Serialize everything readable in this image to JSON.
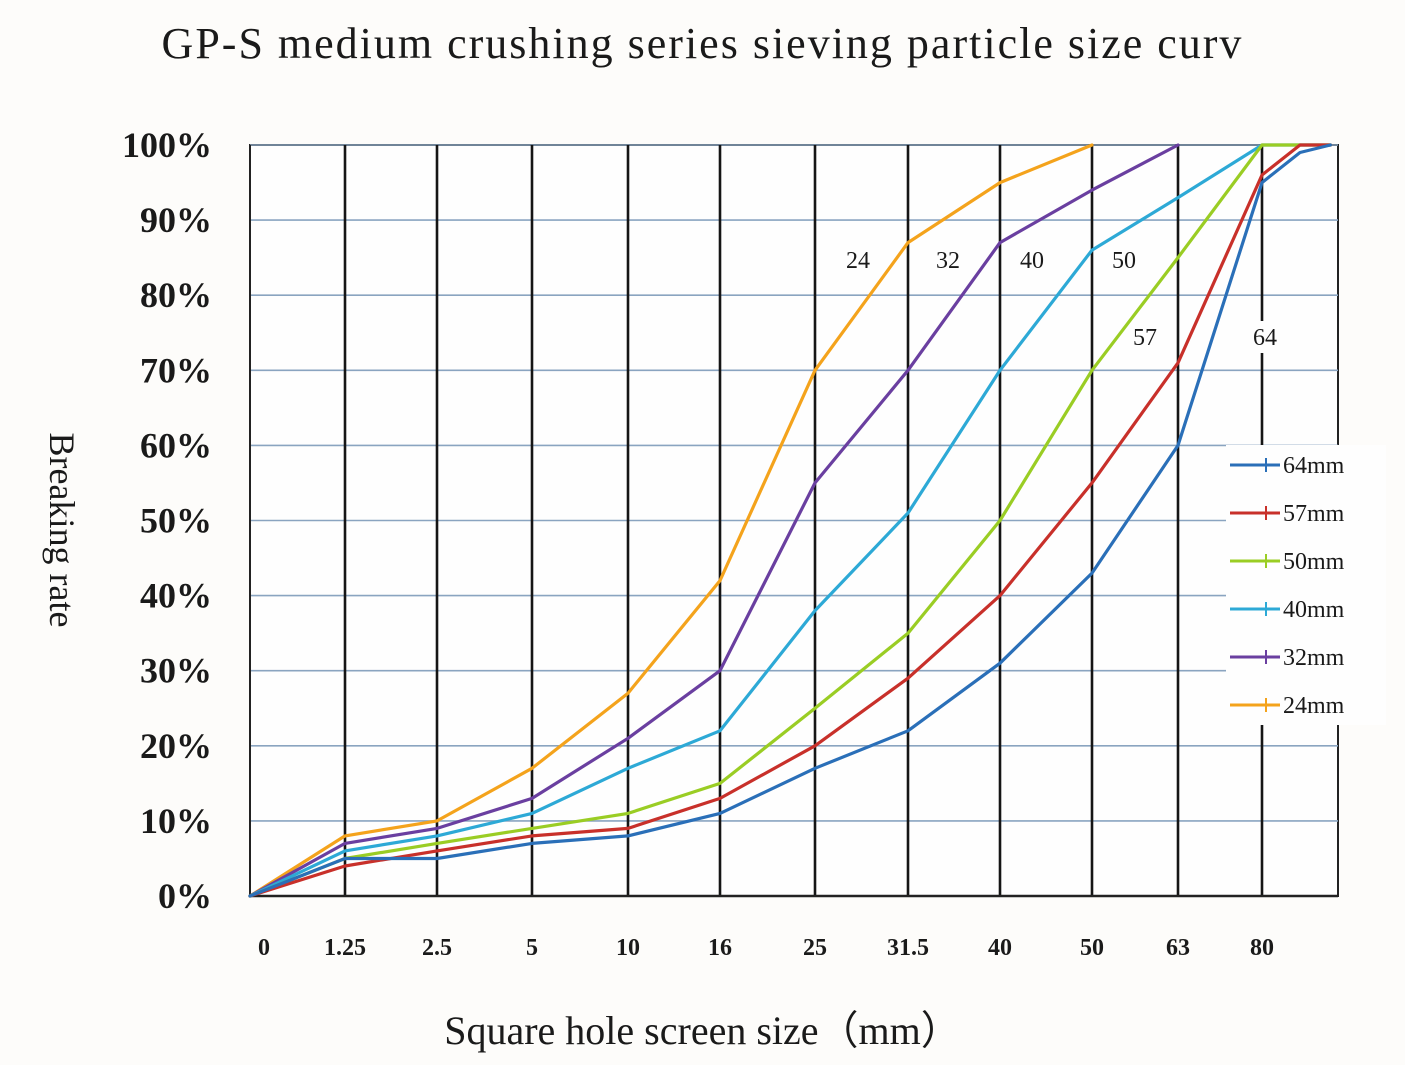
{
  "chart_data": {
    "type": "line",
    "title": "GP-S medium crushing series sieving particle size curv",
    "xlabel": "Square hole screen size（mm）",
    "ylabel": "Breaking rate",
    "x_categories": [
      "0",
      "1.25",
      "2.5",
      "5",
      "10",
      "16",
      "25",
      "31.5",
      "40",
      "50",
      "63",
      "80"
    ],
    "y_ticks": [
      "0%",
      "10%",
      "20%",
      "30%",
      "40%",
      "50%",
      "60%",
      "70%",
      "80%",
      "90%",
      "100%"
    ],
    "ylim": [
      0,
      100
    ],
    "legend_position": "right",
    "series": [
      {
        "name": "64mm",
        "label": "64",
        "color": "#2a6fb8",
        "points": [
          [
            0,
            0
          ],
          [
            1,
            5
          ],
          [
            2,
            5
          ],
          [
            3,
            7
          ],
          [
            4,
            8
          ],
          [
            5,
            11
          ],
          [
            6,
            17
          ],
          [
            7,
            22
          ],
          [
            8,
            31
          ],
          [
            9,
            43
          ],
          [
            10,
            60
          ],
          [
            11,
            95
          ],
          [
            11.5,
            99
          ],
          [
            11.9,
            100
          ]
        ]
      },
      {
        "name": "57mm",
        "label": "57",
        "color": "#c8302a",
        "points": [
          [
            0,
            0
          ],
          [
            1,
            4
          ],
          [
            2,
            6
          ],
          [
            3,
            8
          ],
          [
            4,
            9
          ],
          [
            5,
            13
          ],
          [
            6,
            20
          ],
          [
            7,
            29
          ],
          [
            8,
            40
          ],
          [
            9,
            55
          ],
          [
            10,
            71
          ],
          [
            11,
            96
          ],
          [
            11.5,
            100
          ],
          [
            11.9,
            100
          ]
        ]
      },
      {
        "name": "50mm",
        "label": "50",
        "color": "#9acd24",
        "points": [
          [
            0,
            0
          ],
          [
            1,
            5
          ],
          [
            2,
            7
          ],
          [
            3,
            9
          ],
          [
            4,
            11
          ],
          [
            5,
            15
          ],
          [
            6,
            25
          ],
          [
            7,
            35
          ],
          [
            8,
            50
          ],
          [
            9,
            70
          ],
          [
            10,
            85
          ],
          [
            11,
            100
          ],
          [
            11.9,
            100
          ]
        ]
      },
      {
        "name": "40mm",
        "label": "40",
        "color": "#2da9d6",
        "points": [
          [
            0,
            0
          ],
          [
            1,
            6
          ],
          [
            2,
            8
          ],
          [
            3,
            11
          ],
          [
            4,
            17
          ],
          [
            5,
            22
          ],
          [
            6,
            38
          ],
          [
            7,
            51
          ],
          [
            8,
            70
          ],
          [
            9,
            86
          ],
          [
            10,
            93
          ],
          [
            11,
            100
          ],
          [
            11.9,
            100
          ]
        ]
      },
      {
        "name": "32mm",
        "label": "32",
        "color": "#6a3fa0",
        "points": [
          [
            0,
            0
          ],
          [
            1,
            7
          ],
          [
            2,
            9
          ],
          [
            3,
            13
          ],
          [
            4,
            21
          ],
          [
            5,
            30
          ],
          [
            6,
            55
          ],
          [
            7,
            70
          ],
          [
            8,
            87
          ],
          [
            9,
            94
          ],
          [
            10,
            100
          ]
        ]
      },
      {
        "name": "24mm",
        "label": "24",
        "color": "#f4a31c",
        "points": [
          [
            0,
            0
          ],
          [
            1,
            8
          ],
          [
            2,
            10
          ],
          [
            3,
            17
          ],
          [
            4,
            27
          ],
          [
            5,
            42
          ],
          [
            6,
            70
          ],
          [
            7,
            87
          ],
          [
            8,
            95
          ],
          [
            9,
            100
          ]
        ]
      }
    ]
  }
}
